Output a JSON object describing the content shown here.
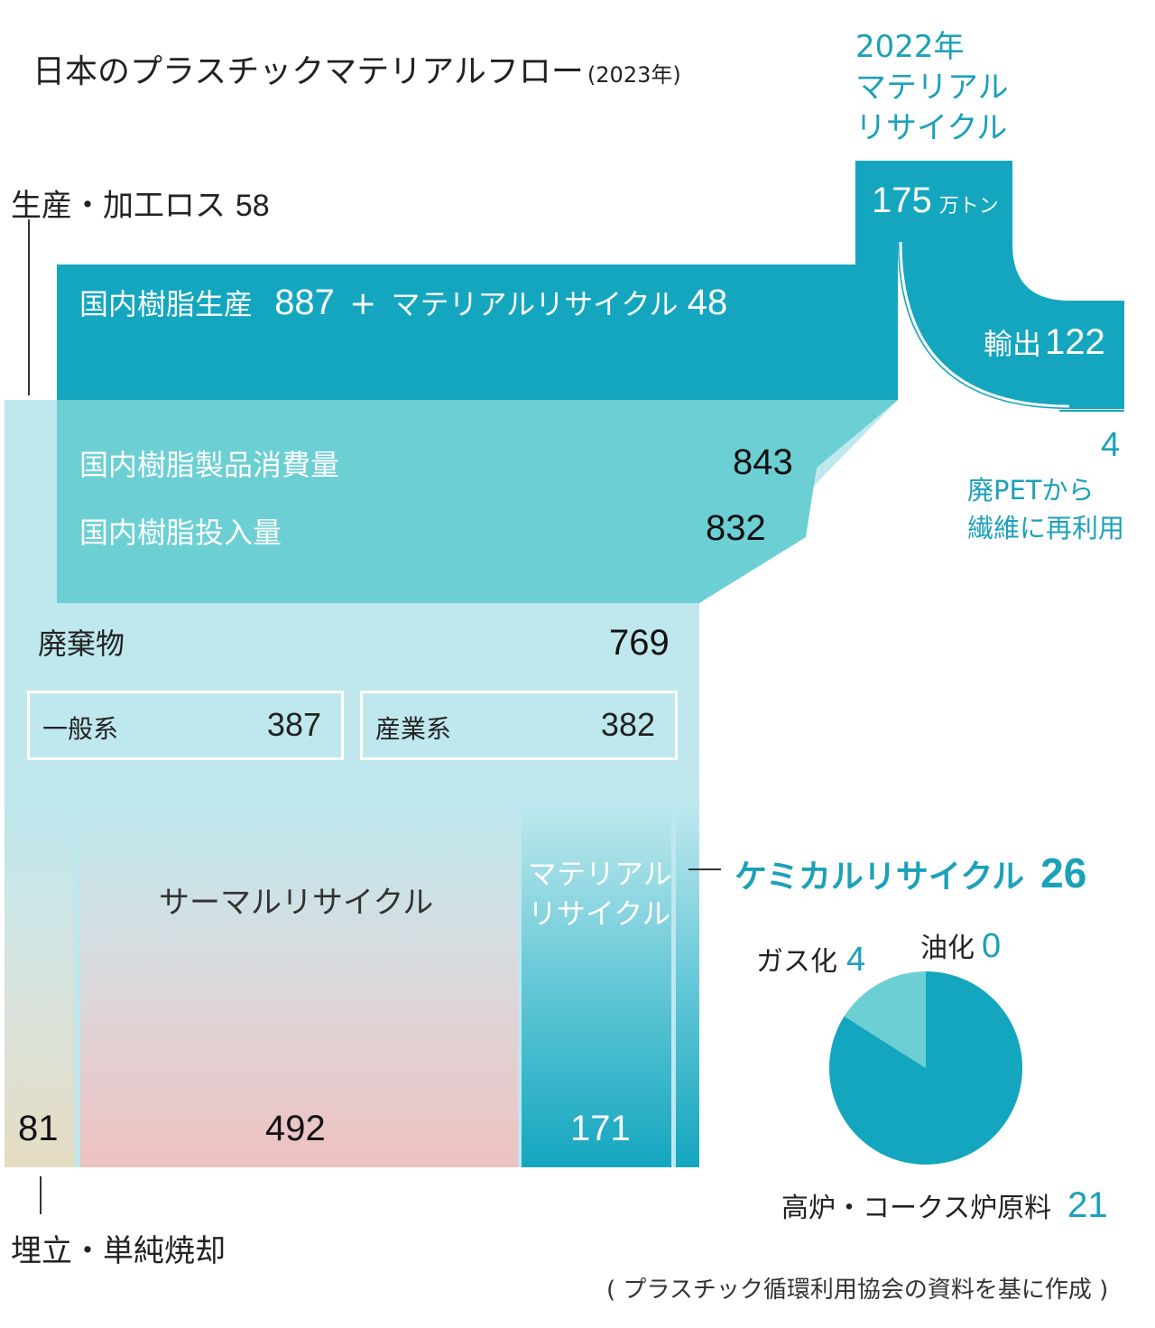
{
  "title": "日本のプラスチックマテリアルフロー",
  "title_year": "(2023年)",
  "recycle2022": {
    "label_line1": "2022年",
    "label_line2": "マテリアル",
    "label_line3": "リサイクル",
    "value": "175",
    "unit": "万トン"
  },
  "production_loss": {
    "label": "生産・加工ロス",
    "value": "58"
  },
  "production": {
    "label": "国内樹脂生産",
    "value": "887",
    "plus": "+",
    "mr_label": "マテリアルリサイクル",
    "mr_value": "48"
  },
  "export": {
    "label": "輸出",
    "value": "122"
  },
  "pet_fiber": {
    "value": "4",
    "label_line1": "廃PETから",
    "label_line2": "繊維に再利用"
  },
  "consumption": {
    "label": "国内樹脂製品消費量",
    "value": "843"
  },
  "input": {
    "label": "国内樹脂投入量",
    "value": "832"
  },
  "waste": {
    "label": "廃棄物",
    "value": "769"
  },
  "general": {
    "label": "一般系",
    "value": "387"
  },
  "industrial": {
    "label": "産業系",
    "value": "382"
  },
  "thermal": {
    "label": "サーマルリサイクル",
    "value": "492"
  },
  "material_recycle": {
    "label_line1": "マテリアル",
    "label_line2": "リサイクル",
    "value": "171"
  },
  "landfill": {
    "label": "埋立・単純焼却",
    "value": "81"
  },
  "chemical": {
    "label": "ケミカルリサイクル",
    "value": "26"
  },
  "gasification": {
    "label": "ガス化",
    "value": "4"
  },
  "oil": {
    "label": "油化",
    "value": "0"
  },
  "blast_furnace": {
    "label": "高炉・コークス炉原料",
    "value": "21"
  },
  "source": "( プラスチック循環利用協会の資料を基に作成 )",
  "colors": {
    "teal_dark": "#14a6bf",
    "teal_mid": "#6ccfd4",
    "teal_light": "#bfe8ee",
    "thermal_bottom": "#efc1c1",
    "landfill_bottom": "#e6dcc3",
    "text_teal": "#1ba1b9"
  },
  "chart_data": {
    "type": "pie",
    "title": "ケミカルリサイクル",
    "total": 26,
    "categories": [
      "高炉・コークス炉原料",
      "ガス化",
      "油化"
    ],
    "values": [
      21,
      4,
      0
    ]
  }
}
